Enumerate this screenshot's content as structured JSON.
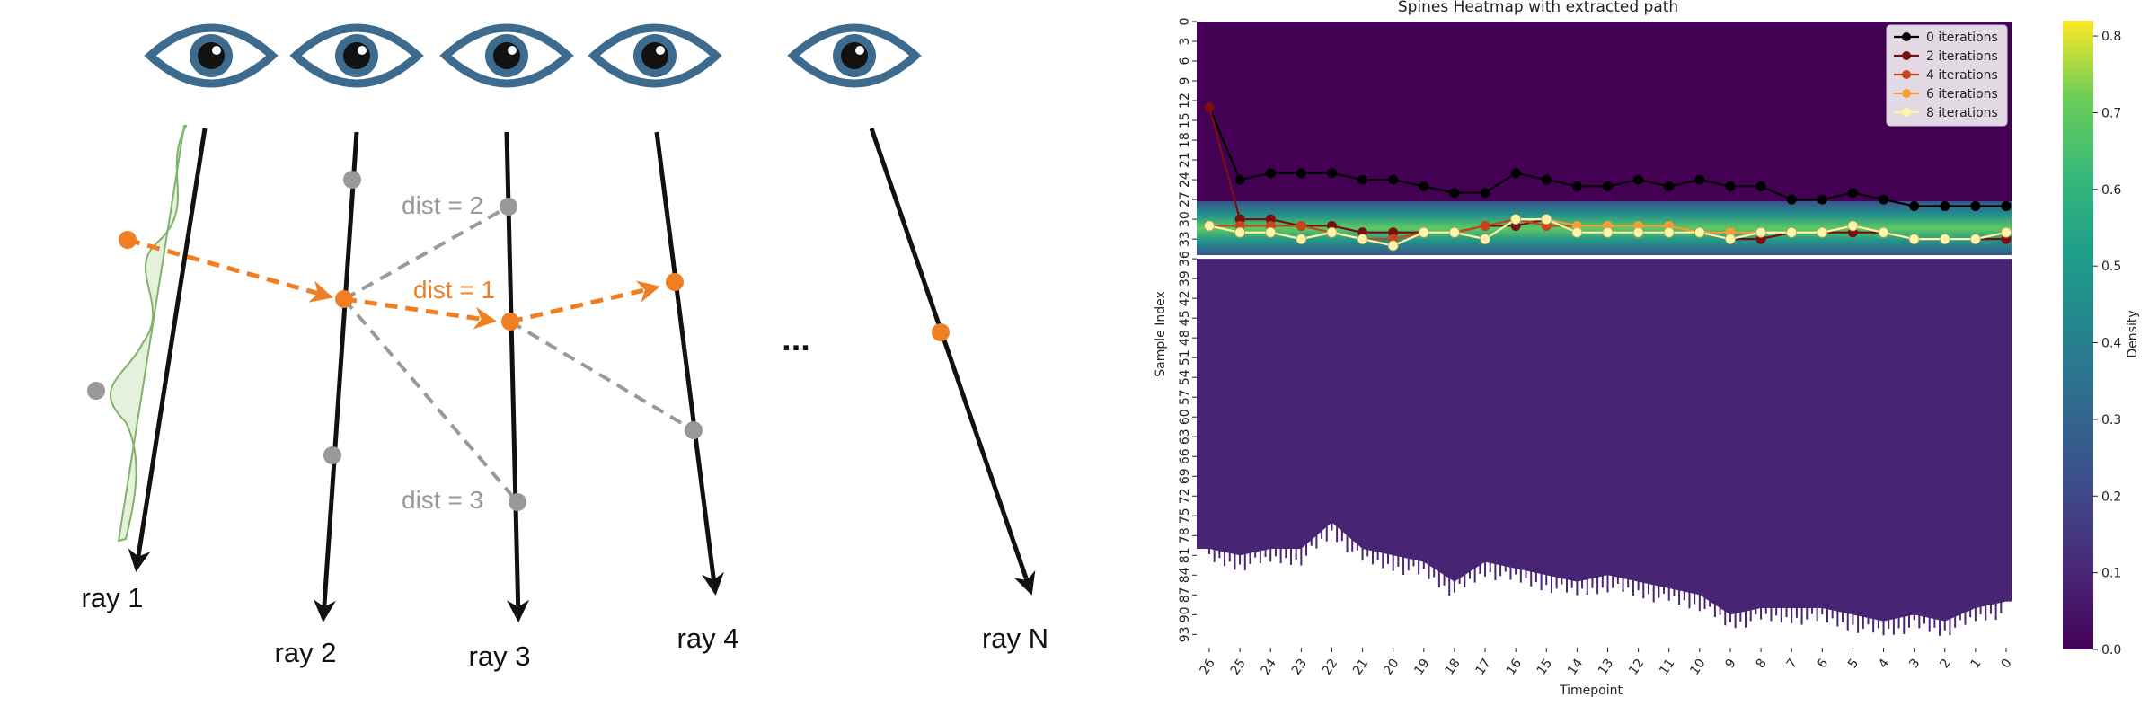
{
  "diagram": {
    "ray_labels": [
      "ray 1",
      "ray 2",
      "ray 3",
      "ray 4",
      "ray N"
    ],
    "ellipsis": "...",
    "dist_labels": {
      "d2": "dist = 2",
      "d1": "dist = 1",
      "d3": "dist = 3"
    },
    "colors": {
      "eye": "#3d6b8e",
      "orange": "#f07f24",
      "gray": "#999999",
      "density_fill": "#e6f1dd",
      "density_stroke": "#7fb36a"
    }
  },
  "chart_data": {
    "type": "heatmap",
    "title": "Spines Heatmap with extracted path",
    "xlabel": "Timepoint",
    "ylabel": "Sample Index",
    "x_ticks": [
      "26",
      "25",
      "24",
      "23",
      "22",
      "21",
      "20",
      "19",
      "18",
      "17",
      "16",
      "15",
      "14",
      "13",
      "12",
      "11",
      "10",
      "9",
      "8",
      "7",
      "6",
      "5",
      "4",
      "3",
      "2",
      "1",
      "0"
    ],
    "y_ticks": [
      "0",
      "3",
      "6",
      "9",
      "12",
      "15",
      "18",
      "21",
      "24",
      "27",
      "30",
      "33",
      "36",
      "39",
      "42",
      "45",
      "48",
      "51",
      "54",
      "57",
      "60",
      "63",
      "66",
      "69",
      "72",
      "75",
      "78",
      "81",
      "84",
      "87",
      "90",
      "93"
    ],
    "xlim": [
      26,
      0
    ],
    "ylim": [
      0,
      95
    ],
    "colorbar": {
      "label": "Density",
      "ticks": [
        "0.0",
        "0.1",
        "0.2",
        "0.3",
        "0.4",
        "0.5",
        "0.6",
        "0.7",
        "0.8"
      ],
      "range": [
        0.0,
        0.82
      ],
      "cmap": "viridis"
    },
    "bright_band": [
      28,
      36
    ],
    "lower_edge": [
      {
        "x": 26,
        "y": 80
      },
      {
        "x": 25,
        "y": 81
      },
      {
        "x": 24,
        "y": 80
      },
      {
        "x": 23,
        "y": 80
      },
      {
        "x": 22,
        "y": 76
      },
      {
        "x": 21,
        "y": 80
      },
      {
        "x": 20,
        "y": 81
      },
      {
        "x": 19,
        "y": 82
      },
      {
        "x": 18,
        "y": 85
      },
      {
        "x": 17,
        "y": 82
      },
      {
        "x": 16,
        "y": 83
      },
      {
        "x": 15,
        "y": 84
      },
      {
        "x": 14,
        "y": 85
      },
      {
        "x": 13,
        "y": 84
      },
      {
        "x": 12,
        "y": 85
      },
      {
        "x": 11,
        "y": 86
      },
      {
        "x": 10,
        "y": 87
      },
      {
        "x": 9,
        "y": 90
      },
      {
        "x": 8,
        "y": 89
      },
      {
        "x": 7,
        "y": 89
      },
      {
        "x": 6,
        "y": 89
      },
      {
        "x": 5,
        "y": 90
      },
      {
        "x": 4,
        "y": 91
      },
      {
        "x": 3,
        "y": 90
      },
      {
        "x": 2,
        "y": 91
      },
      {
        "x": 1,
        "y": 89
      },
      {
        "x": 0,
        "y": 88
      }
    ],
    "legend_position": "top-right",
    "series": [
      {
        "name": "0 iterations",
        "color": "#000000",
        "x": [
          26,
          25,
          24,
          23,
          22,
          21,
          20,
          19,
          18,
          17,
          16,
          15,
          14,
          13,
          12,
          11,
          10,
          9,
          8,
          7,
          6,
          5,
          4,
          3,
          2,
          1,
          0
        ],
        "y": [
          13,
          24,
          23,
          23,
          23,
          24,
          24,
          25,
          26,
          26,
          23,
          24,
          25,
          25,
          24,
          25,
          24,
          25,
          25,
          27,
          27,
          26,
          27,
          28,
          28,
          28,
          28
        ]
      },
      {
        "name": "2 iterations",
        "color": "#7a0f0f",
        "x": [
          26,
          25,
          24,
          23,
          22,
          21,
          20,
          19,
          18,
          17,
          16,
          15,
          14,
          13,
          12,
          11,
          10,
          9,
          8,
          7,
          6,
          5,
          4,
          3,
          2,
          1,
          0
        ],
        "y": [
          13,
          30,
          30,
          31,
          31,
          32,
          32,
          32,
          32,
          31,
          31,
          30,
          32,
          32,
          32,
          32,
          32,
          33,
          33,
          32,
          32,
          32,
          32,
          33,
          33,
          33,
          33
        ]
      },
      {
        "name": "4 iterations",
        "color": "#c8451a",
        "x": [
          26,
          25,
          24,
          23,
          22,
          21,
          20,
          19,
          18,
          17,
          16,
          15,
          14,
          13,
          12,
          11,
          10,
          9,
          8,
          7,
          6,
          5,
          4,
          3,
          2,
          1,
          0
        ],
        "y": [
          31,
          31,
          31,
          31,
          32,
          33,
          33,
          32,
          32,
          31,
          30,
          31,
          31,
          31,
          31,
          31,
          32,
          32,
          32,
          32,
          32,
          31,
          32,
          33,
          33,
          33,
          32
        ]
      },
      {
        "name": "6 iterations",
        "color": "#f0a034",
        "x": [
          26,
          25,
          24,
          23,
          22,
          21,
          20,
          19,
          18,
          17,
          16,
          15,
          14,
          13,
          12,
          11,
          10,
          9,
          8,
          7,
          6,
          5,
          4,
          3,
          2,
          1,
          0
        ],
        "y": [
          31,
          32,
          32,
          33,
          32,
          33,
          34,
          32,
          32,
          33,
          30,
          30,
          31,
          31,
          31,
          31,
          32,
          32,
          32,
          32,
          32,
          31,
          32,
          33,
          33,
          33,
          32
        ]
      },
      {
        "name": "8 iterations",
        "color": "#fbf5a8",
        "x": [
          26,
          25,
          24,
          23,
          22,
          21,
          20,
          19,
          18,
          17,
          16,
          15,
          14,
          13,
          12,
          11,
          10,
          9,
          8,
          7,
          6,
          5,
          4,
          3,
          2,
          1,
          0
        ],
        "y": [
          31,
          32,
          32,
          33,
          32,
          33,
          34,
          32,
          32,
          33,
          30,
          30,
          32,
          32,
          32,
          32,
          32,
          33,
          32,
          32,
          32,
          31,
          32,
          33,
          33,
          33,
          32
        ]
      }
    ]
  }
}
